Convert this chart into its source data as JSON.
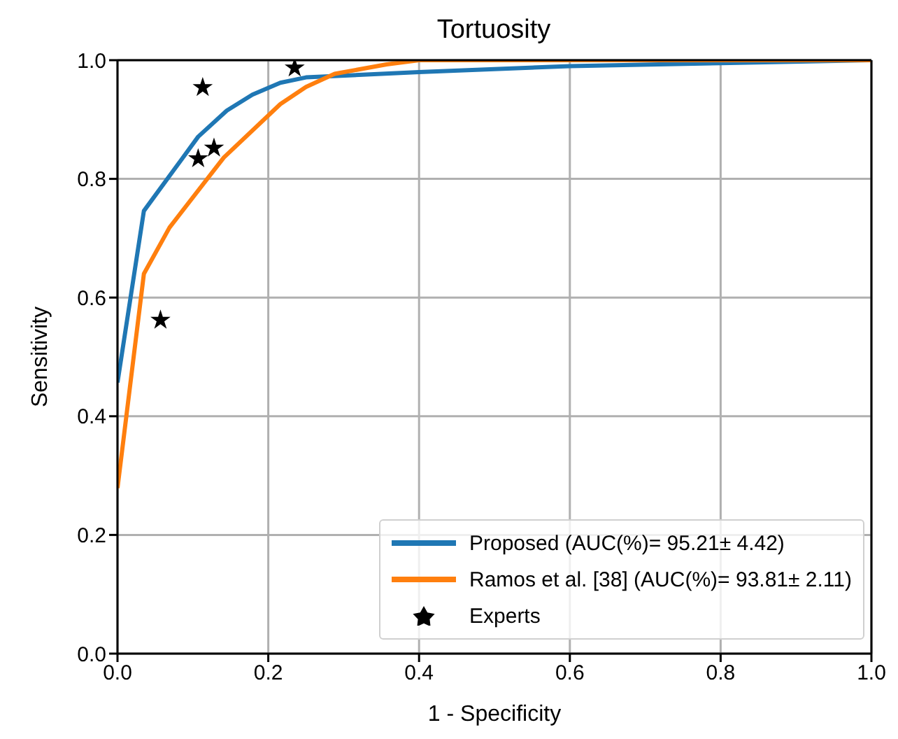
{
  "chart_data": {
    "type": "line",
    "title": "Tortuosity",
    "xlabel": "1 - Specificity",
    "ylabel": "Sensitivity",
    "xlim": [
      0,
      1
    ],
    "ylim": [
      0,
      1
    ],
    "xticks": [
      {
        "value": 0,
        "label": "0.0"
      },
      0.2,
      0.4,
      0.6,
      0.8,
      {
        "value": 1,
        "label": "1.0"
      }
    ],
    "yticks": [
      {
        "value": 0,
        "label": "0.0"
      },
      0.2,
      0.4,
      0.6,
      0.8,
      {
        "value": 1,
        "label": "1.0"
      }
    ],
    "grid": true,
    "legend": "bottom right",
    "line_style": "solid",
    "marker": "none",
    "series": [
      {
        "name": "Proposed (AUC(%)= 95.21± 4.42)",
        "color": "#1f77b4",
        "x": [
          0,
          0.035,
          0.107,
          0.145,
          0.179,
          0.216,
          0.25,
          0.4,
          0.6,
          0.8,
          1
        ],
        "values": [
          0.457,
          0.746,
          0.871,
          0.915,
          0.942,
          0.962,
          0.971,
          0.98,
          0.99,
          0.995,
          1
        ]
      },
      {
        "name": "Ramos et al. [38] (AUC(%)= 93.81± 2.11)",
        "color": "#ff7f0e",
        "x": [
          0,
          0.035,
          0.069,
          0.141,
          0.216,
          0.25,
          0.288,
          0.357,
          0.4,
          1
        ],
        "values": [
          0.279,
          0.64,
          0.718,
          0.836,
          0.926,
          0.955,
          0.977,
          0.993,
          1,
          1
        ]
      },
      {
        "name": "Experts",
        "type": "scatter",
        "marker": "star",
        "color": "#000000",
        "x": [
          0.113,
          0.107,
          0.128,
          0.057,
          0.235
        ],
        "values": [
          0.954,
          0.834,
          0.852,
          0.562,
          0.987
        ]
      }
    ]
  }
}
